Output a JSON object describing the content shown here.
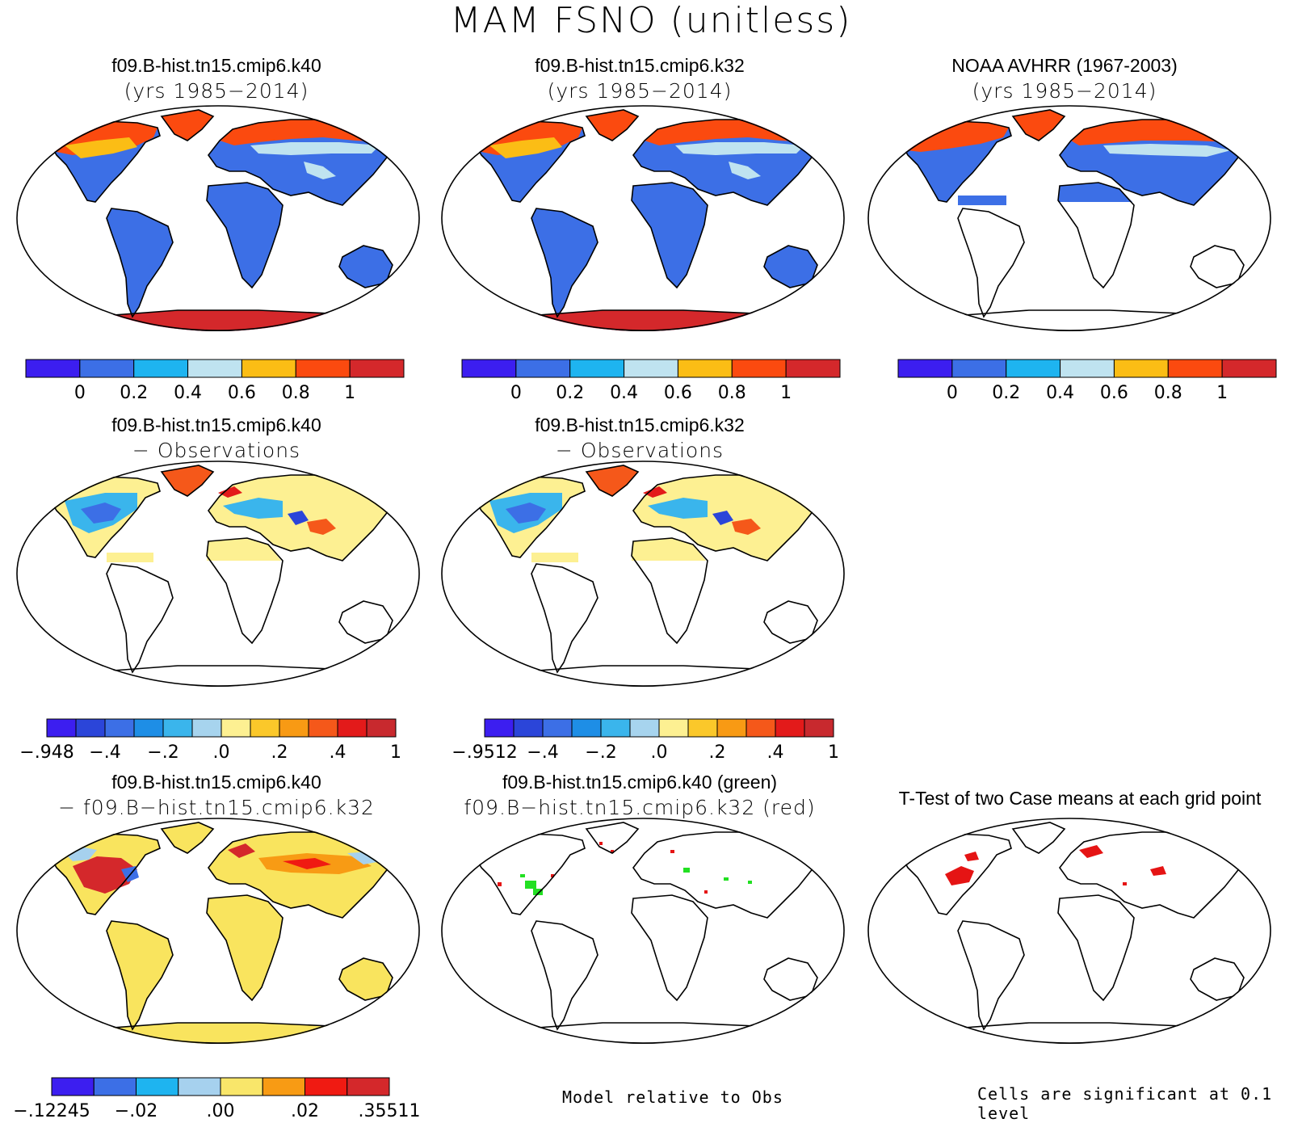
{
  "title": "MAM FSNO (unitless)",
  "colors": {
    "seq": [
      "#3c1ef0",
      "#3c6fe6",
      "#1eb4f0",
      "#bfe3f0",
      "#fbbd15",
      "#fb4a0f",
      "#d4282b"
    ],
    "div12": [
      "#3c1ef0",
      "#2b45d9",
      "#3c6fe6",
      "#1e8ee6",
      "#3ab5ec",
      "#a7d4ee",
      "#fdf092",
      "#fbc82a",
      "#f89a14",
      "#f5581a",
      "#e31a1a",
      "#c8292e"
    ],
    "div8": [
      "#3c1ef0",
      "#3c6fe6",
      "#1eb4f0",
      "#a6d1ee",
      "#f9e66a",
      "#f89b14",
      "#f01a12",
      "#d4282b"
    ],
    "land": "#3c6fe6",
    "green": "#22e022",
    "red": "#e51414"
  },
  "panels": [
    {
      "title1": "f09.B-hist.tn15.cmip6.k40",
      "title2": "(yrs 1985−2014)",
      "map": "case"
    },
    {
      "title1": "f09.B-hist.tn15.cmip6.k32",
      "title2": "(yrs 1985−2014)",
      "map": "case"
    },
    {
      "title1": "NOAA AVHRR (1967-2003)",
      "title2": "(yrs 1985−2014)",
      "map": "obs"
    },
    {
      "title1": "f09.B-hist.tn15.cmip6.k40",
      "title2": "− Observations",
      "map": "diff"
    },
    {
      "title1": "f09.B-hist.tn15.cmip6.k32",
      "title2": "− Observations",
      "map": "diff"
    },
    {
      "title1": "f09.B-hist.tn15.cmip6.k40",
      "title2": "− f09.B−hist.tn15.cmip6.k32",
      "map": "casediff"
    },
    {
      "title1": "f09.B-hist.tn15.cmip6.k40 (green)",
      "title2": "f09.B−hist.tn15.cmip6.k32 (red)",
      "map": "rel"
    },
    {
      "title1": "T-Test of two Case means at each grid point",
      "title2": "",
      "map": "ttest"
    }
  ],
  "colorbars": [
    {
      "labels": [
        "0",
        "0.2",
        "0.4",
        "0.6",
        "0.8",
        "1"
      ]
    },
    {
      "labels": [
        "0",
        "0.2",
        "0.4",
        "0.6",
        "0.8",
        "1"
      ]
    },
    {
      "labels": [
        "0",
        "0.2",
        "0.4",
        "0.6",
        "0.8",
        "1"
      ]
    },
    {
      "labels": [
        "−.948",
        "−.4",
        "−.2",
        ".0",
        ".2",
        ".4",
        "1"
      ]
    },
    {
      "labels": [
        "−.9512",
        "−.4",
        "−.2",
        ".0",
        ".2",
        ".4",
        "1"
      ]
    },
    {
      "labels": [
        "−.12245",
        "−.02",
        ".00",
        ".02",
        ".35511"
      ]
    }
  ],
  "footnotes": {
    "rel": "Model relative to Obs",
    "ttest": "Cells are significant at 0.1 level"
  }
}
